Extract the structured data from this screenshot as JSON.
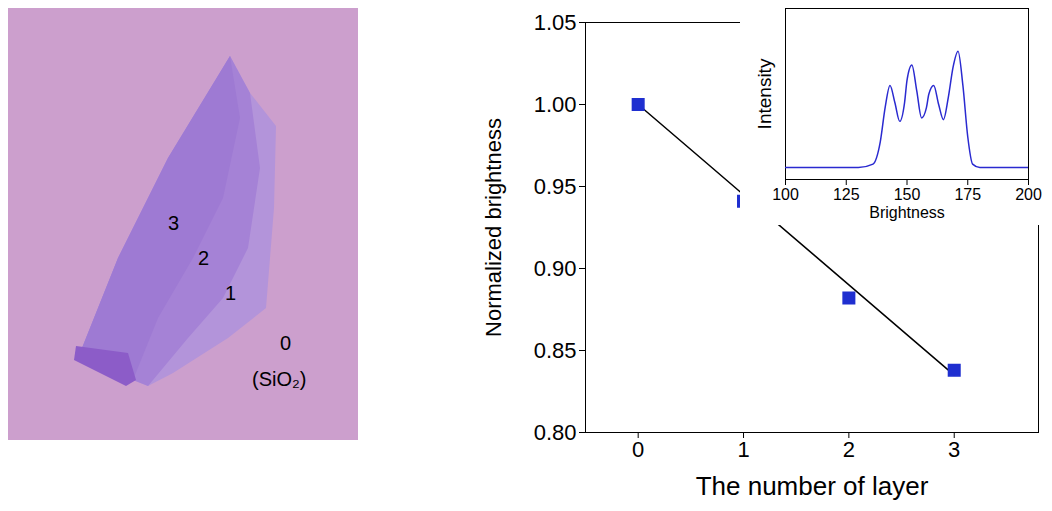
{
  "chart_data": [
    {
      "type": "scatter",
      "xlabel": "The number of layer",
      "ylabel": "Normalized brightness",
      "x": [
        0,
        1,
        2,
        3
      ],
      "series": [
        {
          "type": "line",
          "color": "#000000",
          "line_style": "solid",
          "values": [
            1.0,
            0.945,
            0.89,
            0.835
          ]
        },
        {
          "type": "scatter",
          "color": "#1f2fd0",
          "marker": "square",
          "values": [
            1.0,
            0.941,
            0.882,
            0.838
          ]
        }
      ],
      "xlim": [
        -0.5,
        3.8
      ],
      "ylim": [
        0.8,
        1.05
      ],
      "xticks": [
        0,
        1,
        2,
        3
      ],
      "yticks": [
        {
          "value": 0.8,
          "label": "0.80"
        },
        0.85,
        {
          "value": 0.9,
          "label": "0.90"
        },
        0.95,
        {
          "value": 1,
          "label": "1.00"
        },
        1.05
      ]
    },
    {
      "type": "line",
      "xlabel": "Brightness",
      "ylabel": "Intensity",
      "x": [
        100,
        130,
        136,
        139,
        141,
        143,
        145,
        147,
        149,
        150,
        152,
        154,
        156,
        158,
        159,
        161,
        163,
        165,
        167,
        169,
        171,
        173,
        175,
        177,
        180,
        200
      ],
      "series": [
        {
          "type": "line",
          "color": "#2a2ad0",
          "line_style": "solid",
          "values": [
            0.07,
            0.07,
            0.09,
            0.22,
            0.42,
            0.55,
            0.45,
            0.34,
            0.45,
            0.58,
            0.67,
            0.52,
            0.36,
            0.42,
            0.5,
            0.55,
            0.44,
            0.35,
            0.48,
            0.66,
            0.75,
            0.55,
            0.25,
            0.09,
            0.07,
            0.07
          ]
        }
      ],
      "xlim": [
        100,
        200
      ],
      "ylim": [
        0,
        1
      ],
      "xticks": [
        100,
        125,
        150,
        175,
        200
      ],
      "tick_labels": "x"
    }
  ],
  "image": {
    "labels": [
      "3",
      "2",
      "1",
      "0",
      "(SiO₂)"
    ]
  }
}
